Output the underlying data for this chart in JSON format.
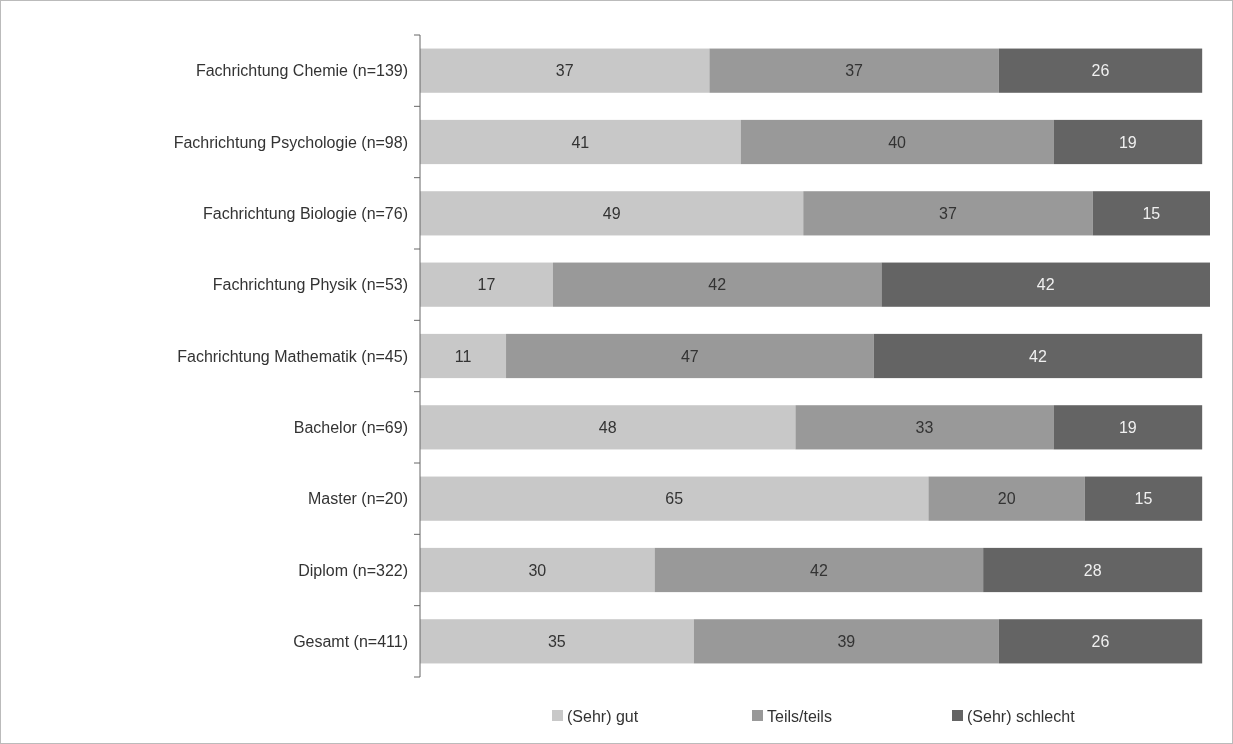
{
  "chart_data": {
    "type": "bar",
    "orientation": "horizontal",
    "stacked": true,
    "data_labels": true,
    "legend": "bottom",
    "categories": [
      "Fachrichtung Chemie (n=139)",
      "Fachrichtung Psychologie (n=98)",
      "Fachrichtung Biologie (n=76)",
      "Fachrichtung Physik (n=53)",
      "Fachrichtung Mathematik (n=45)",
      "Bachelor (n=69)",
      "Master (n=20)",
      "Diplom (n=322)",
      "Gesamt (n=411)"
    ],
    "series": [
      {
        "name": "(Sehr) gut",
        "color": "#c8c8c8",
        "values": [
          37,
          41,
          49,
          17,
          11,
          48,
          65,
          30,
          35
        ]
      },
      {
        "name": "Teils/teils",
        "color": "#999999",
        "values": [
          37,
          40,
          37,
          42,
          47,
          33,
          20,
          42,
          39
        ]
      },
      {
        "name": "(Sehr) schlecht",
        "color": "#646464",
        "values": [
          26,
          19,
          15,
          42,
          42,
          19,
          15,
          28,
          26
        ]
      }
    ]
  }
}
